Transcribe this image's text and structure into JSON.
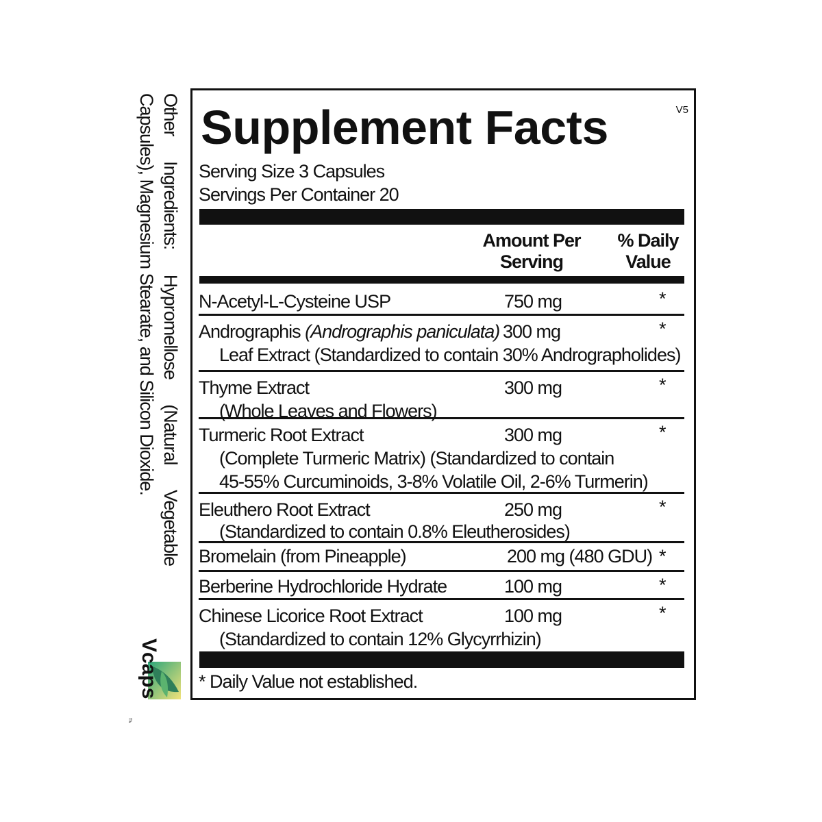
{
  "other_ingredients": {
    "line1": "Other Ingredients: Hypromellose (Natural Vegetable",
    "line2": "Capsules), Magnesium Stearate, and Silicon Dioxide."
  },
  "logo": {
    "text": "Vcaps",
    "tm": "TM"
  },
  "label": {
    "title": "Supplement Facts",
    "version": "V5",
    "serving_size": "Serving Size 3 Capsules",
    "servings_per_container": "Servings Per Container 20",
    "header_amount": [
      "Amount Per",
      "Serving"
    ],
    "header_dv": [
      "% Daily",
      "Value"
    ],
    "rows": [
      {
        "name": "N-Acetyl-L-Cysteine USP",
        "amount": "750 mg",
        "dv": "*",
        "sub": []
      },
      {
        "name": "Andrographis ",
        "name_italic": "(Andrographis paniculata)",
        "amount": "300 mg",
        "dv": "*",
        "sub": [
          "Leaf Extract (Standardized to contain 30% Andrographolides)"
        ]
      },
      {
        "name": "Thyme Extract",
        "amount": "300 mg",
        "dv": "*",
        "sub": [
          "(Whole Leaves and Flowers)"
        ]
      },
      {
        "name": "Turmeric Root Extract",
        "amount": "300 mg",
        "dv": "*",
        "sub": [
          "(Complete Turmeric Matrix) (Standardized to contain",
          "45-55% Curcuminoids, 3-8% Volatile Oil, 2-6% Turmerin)"
        ]
      },
      {
        "name": "Eleuthero Root Extract",
        "amount": "250 mg",
        "dv": "*",
        "sub": [
          "(Standardized to contain 0.8% Eleutherosides)"
        ]
      },
      {
        "name": "Bromelain (from Pineapple)",
        "amount": "200 mg (480 GDU)",
        "dv": "*",
        "sub": []
      },
      {
        "name": "Berberine Hydrochloride Hydrate",
        "amount": "100 mg",
        "dv": "*",
        "sub": []
      },
      {
        "name": "Chinese Licorice Root Extract",
        "amount": "100 mg",
        "dv": "*",
        "sub": [
          "(Standardized to contain 12% Glycyrrhizin)"
        ]
      }
    ],
    "footnote": "* Daily Value not established."
  }
}
